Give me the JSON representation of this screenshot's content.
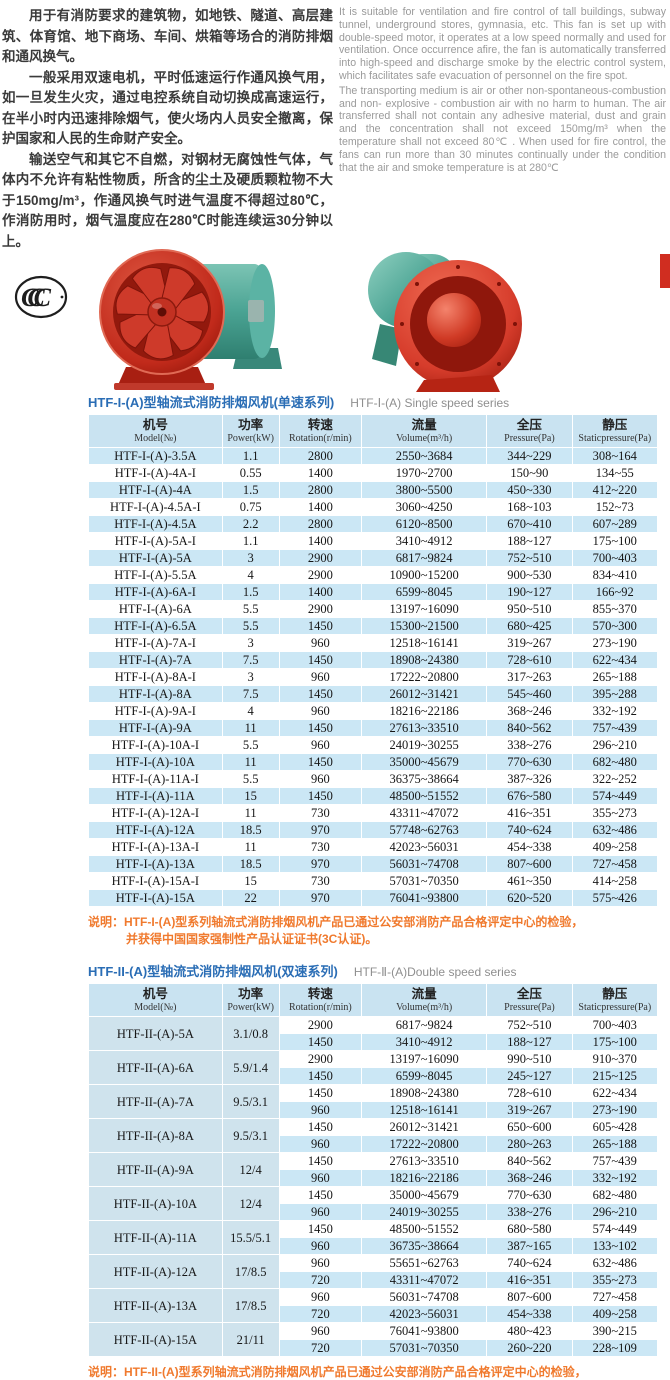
{
  "intro": {
    "zh": [
      "用于有消防要求的建筑物，如地铁、隧道、高层建筑、体育馆、地下商场、车间、烘箱等场合的消防排烟和通风换气。",
      "一般采用双速电机，平时低速运行作通风换气用，如一旦发生火灾，通过电控系统自动切换成高速运行，在半小时内迅速排除烟气，使火场内人员安全撤离，保护国家和人民的生命财产安全。",
      "输送空气和其它不自燃，对钢材无腐蚀性气体，气体内不允许有粘性物质，所含的尘土及硬质颗粒物不大于150mg/m³，作通风换气时进气温度不得超过80℃，作消防用时，烟气温度应在280℃时能连续运30分钟以上。"
    ],
    "en": [
      "It is suitable for ventilation and fire control of tall buildings, subway tunnel, underground stores, gymnasia, etc. This fan is set up with double-speed motor, it operates at a low speed normally and used for ventilation. Once occurrence afire, the fan is automatically transferred into high-speed and discharge smoke by the electric control system, which facilitates safe evacuation of personnel on the fire spot.",
      "The transporting medium is air or other non-spontaneous-combustion and non- explosive - combustion air with no harm to human. The air transferred shall not contain any adhesive material, dust and grain and the concentration shall not exceed 150mg/m³ when the temperature shall not exceed 80℃ . When used for fire control, the fans can run more than 30 minutes continually under the condition that the air and smoke temperature is at 280℃"
    ]
  },
  "icons": {
    "ccc_text": "CCC"
  },
  "columns": [
    {
      "zh": "机号",
      "en": "Model(№)"
    },
    {
      "zh": "功率",
      "en": "Power(kW)"
    },
    {
      "zh": "转速",
      "en": "Rotation(r/min)"
    },
    {
      "zh": "流量",
      "en": "Volume(m³/h)"
    },
    {
      "zh": "全压",
      "en": "Pressure(Pa)"
    },
    {
      "zh": "静压",
      "en": "Staticpressure(Pa)"
    }
  ],
  "table1": {
    "title_zh": "HTF-I-(A)型轴流式消防排烟风机(单速系列)",
    "title_en": "HTF-Ⅰ-(A) Single speed series",
    "rows": [
      [
        "HTF-I-(A)-3.5A",
        "1.1",
        "2800",
        "2550~3684",
        "344~229",
        "308~164"
      ],
      [
        "HTF-I-(A)-4A-I",
        "0.55",
        "1400",
        "1970~2700",
        "150~90",
        "134~55"
      ],
      [
        "HTF-I-(A)-4A",
        "1.5",
        "2800",
        "3800~5500",
        "450~330",
        "412~220"
      ],
      [
        "HTF-I-(A)-4.5A-I",
        "0.75",
        "1400",
        "3060~4250",
        "168~103",
        "152~73"
      ],
      [
        "HTF-I-(A)-4.5A",
        "2.2",
        "2800",
        "6120~8500",
        "670~410",
        "607~289"
      ],
      [
        "HTF-I-(A)-5A-I",
        "1.1",
        "1400",
        "3410~4912",
        "188~127",
        "175~100"
      ],
      [
        "HTF-I-(A)-5A",
        "3",
        "2900",
        "6817~9824",
        "752~510",
        "700~403"
      ],
      [
        "HTF-I-(A)-5.5A",
        "4",
        "2900",
        "10900~15200",
        "900~530",
        "834~410"
      ],
      [
        "HTF-I-(A)-6A-I",
        "1.5",
        "1400",
        "6599~8045",
        "190~127",
        "166~92"
      ],
      [
        "HTF-I-(A)-6A",
        "5.5",
        "2900",
        "13197~16090",
        "950~510",
        "855~370"
      ],
      [
        "HTF-I-(A)-6.5A",
        "5.5",
        "1450",
        "15300~21500",
        "680~425",
        "570~300"
      ],
      [
        "HTF-I-(A)-7A-I",
        "3",
        "960",
        "12518~16141",
        "319~267",
        "273~190"
      ],
      [
        "HTF-I-(A)-7A",
        "7.5",
        "1450",
        "18908~24380",
        "728~610",
        "622~434"
      ],
      [
        "HTF-I-(A)-8A-I",
        "3",
        "960",
        "17222~20800",
        "317~263",
        "265~188"
      ],
      [
        "HTF-I-(A)-8A",
        "7.5",
        "1450",
        "26012~31421",
        "545~460",
        "395~288"
      ],
      [
        "HTF-I-(A)-9A-I",
        "4",
        "960",
        "18216~22186",
        "368~246",
        "332~192"
      ],
      [
        "HTF-I-(A)-9A",
        "11",
        "1450",
        "27613~33510",
        "840~562",
        "757~439"
      ],
      [
        "HTF-I-(A)-10A-I",
        "5.5",
        "960",
        "24019~30255",
        "338~276",
        "296~210"
      ],
      [
        "HTF-I-(A)-10A",
        "11",
        "1450",
        "35000~45679",
        "770~630",
        "682~480"
      ],
      [
        "HTF-I-(A)-11A-I",
        "5.5",
        "960",
        "36375~38664",
        "387~326",
        "322~252"
      ],
      [
        "HTF-I-(A)-11A",
        "15",
        "1450",
        "48500~51552",
        "676~580",
        "574~449"
      ],
      [
        "HTF-I-(A)-12A-I",
        "11",
        "730",
        "43311~47072",
        "416~351",
        "355~273"
      ],
      [
        "HTF-I-(A)-12A",
        "18.5",
        "970",
        "57748~62763",
        "740~624",
        "632~486"
      ],
      [
        "HTF-I-(A)-13A-I",
        "11",
        "730",
        "42023~56031",
        "454~338",
        "409~258"
      ],
      [
        "HTF-I-(A)-13A",
        "18.5",
        "970",
        "56031~74708",
        "807~600",
        "727~458"
      ],
      [
        "HTF-I-(A)-15A-I",
        "15",
        "730",
        "57031~70350",
        "461~350",
        "414~258"
      ],
      [
        "HTF-I-(A)-15A",
        "22",
        "970",
        "76041~93800",
        "620~520",
        "575~426"
      ]
    ],
    "note": [
      "说明：HTF-I-(A)型系列轴流式消防排烟风机产品已通过公安部消防产品合格评定中心的检验，",
      "并获得中国国家强制性产品认证证书(3C认证)。"
    ]
  },
  "table2": {
    "title_zh": "HTF-II-(A)型轴流式消防排烟风机(双速系列)",
    "title_en": "HTF-Ⅱ-(A)Double speed series",
    "models": [
      {
        "model": "HTF-II-(A)-5A",
        "power": "3.1/0.8",
        "speeds": [
          [
            "2900",
            "6817~9824",
            "752~510",
            "700~403"
          ],
          [
            "1450",
            "3410~4912",
            "188~127",
            "175~100"
          ]
        ]
      },
      {
        "model": "HTF-II-(A)-6A",
        "power": "5.9/1.4",
        "speeds": [
          [
            "2900",
            "13197~16090",
            "990~510",
            "910~370"
          ],
          [
            "1450",
            "6599~8045",
            "245~127",
            "215~125"
          ]
        ]
      },
      {
        "model": "HTF-II-(A)-7A",
        "power": "9.5/3.1",
        "speeds": [
          [
            "1450",
            "18908~24380",
            "728~610",
            "622~434"
          ],
          [
            "960",
            "12518~16141",
            "319~267",
            "273~190"
          ]
        ]
      },
      {
        "model": "HTF-II-(A)-8A",
        "power": "9.5/3.1",
        "speeds": [
          [
            "1450",
            "26012~31421",
            "650~600",
            "605~428"
          ],
          [
            "960",
            "17222~20800",
            "280~263",
            "265~188"
          ]
        ]
      },
      {
        "model": "HTF-II-(A)-9A",
        "power": "12/4",
        "speeds": [
          [
            "1450",
            "27613~33510",
            "840~562",
            "757~439"
          ],
          [
            "960",
            "18216~22186",
            "368~246",
            "332~192"
          ]
        ]
      },
      {
        "model": "HTF-II-(A)-10A",
        "power": "12/4",
        "speeds": [
          [
            "1450",
            "35000~45679",
            "770~630",
            "682~480"
          ],
          [
            "960",
            "24019~30255",
            "338~276",
            "296~210"
          ]
        ]
      },
      {
        "model": "HTF-II-(A)-11A",
        "power": "15.5/5.1",
        "speeds": [
          [
            "1450",
            "48500~51552",
            "680~580",
            "574~449"
          ],
          [
            "960",
            "36735~38664",
            "387~165",
            "133~102"
          ]
        ]
      },
      {
        "model": "HTF-II-(A)-12A",
        "power": "17/8.5",
        "speeds": [
          [
            "960",
            "55651~62763",
            "740~624",
            "632~486"
          ],
          [
            "720",
            "43311~47072",
            "416~351",
            "355~273"
          ]
        ]
      },
      {
        "model": "HTF-II-(A)-13A",
        "power": "17/8.5",
        "speeds": [
          [
            "960",
            "56031~74708",
            "807~600",
            "727~458"
          ],
          [
            "720",
            "42023~56031",
            "454~338",
            "409~258"
          ]
        ]
      },
      {
        "model": "HTF-II-(A)-15A",
        "power": "21/11",
        "speeds": [
          [
            "960",
            "76041~93800",
            "480~423",
            "390~215"
          ],
          [
            "720",
            "57031~70350",
            "260~220",
            "228~109"
          ]
        ]
      }
    ],
    "note": [
      "说明：HTF-II-(A)型系列轴流式消防排烟风机产品已通过公安部消防产品合格评定中心的检验，",
      "并获得中国国家强制性产品认证证书(3C认证)。"
    ]
  },
  "colors": {
    "title_blue": "#2a6db5",
    "note_orange": "#f07a2e",
    "header_bg": "#c9e3f1",
    "row_blue": "#cbe7f5",
    "group_cell_bg": "#cfe3ed",
    "fan_red": "#c93425",
    "fan_green": "#4aa393",
    "tab_red": "#d02d20"
  }
}
